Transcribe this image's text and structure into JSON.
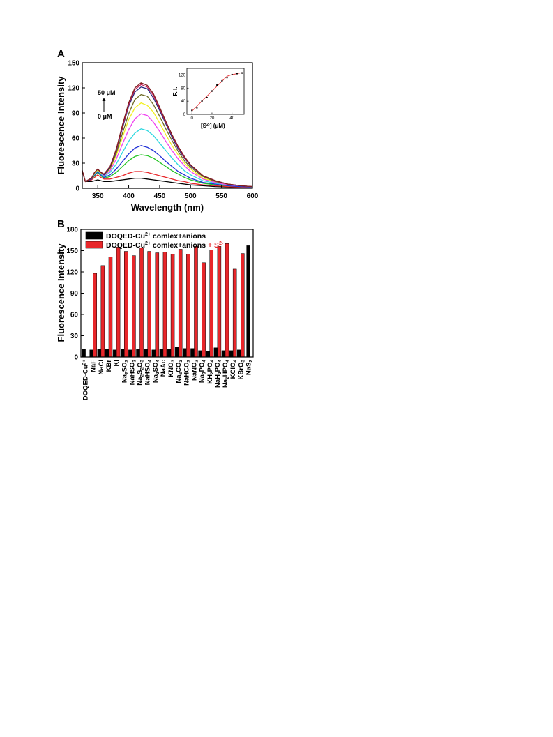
{
  "panels": [
    {
      "id": "A",
      "label": "A",
      "xlabel": "Wavelength (nm)",
      "ylabel": "Fluorescence Intensity",
      "xticks": [
        "350",
        "400",
        "450",
        "500",
        "550",
        "600"
      ],
      "yticks": [
        "0",
        "30",
        "60",
        "90",
        "120",
        "150"
      ],
      "annotation_top": "50 μM",
      "annotation_bottom": "0 μM",
      "inset": {
        "ylabel": "F. I.",
        "xlabel_parts": [
          "[S",
          "2-",
          "]  (μM)"
        ],
        "xticks": [
          "0",
          "20",
          "40"
        ],
        "yticks": [
          "0",
          "40",
          "80",
          "120"
        ]
      }
    },
    {
      "id": "B",
      "label": "B",
      "ylabel": "Fluorescence Intensity",
      "yticks": [
        "0",
        "30",
        "60",
        "90",
        "120",
        "150",
        "180"
      ],
      "legend": [
        {
          "parts": [
            "DOQED-Cu",
            "2+",
            " comlex+anions"
          ]
        },
        {
          "parts": [
            "DOQED-Cu",
            "2+",
            " comlex+anions ",
            "+ S",
            "2-"
          ]
        }
      ]
    }
  ],
  "chart_data": [
    {
      "type": "line",
      "panel": "A",
      "xlabel": "Wavelength (nm)",
      "ylabel": "Fluorescence Intensity",
      "xlim": [
        325,
        600
      ],
      "ylim": [
        0,
        150
      ],
      "x": [
        325,
        330,
        340,
        345,
        350,
        355,
        360,
        370,
        380,
        390,
        400,
        410,
        420,
        430,
        440,
        450,
        460,
        470,
        480,
        490,
        500,
        520,
        540,
        560,
        580,
        600
      ],
      "series": [
        {
          "color": "#000000",
          "values": [
            21,
            8,
            8,
            9,
            10,
            9,
            8,
            8,
            9,
            10,
            11,
            12,
            12,
            11,
            10,
            9,
            8,
            7,
            6,
            5,
            4,
            3,
            2,
            1.5,
            1,
            0.8
          ]
        },
        {
          "color": "#e8262a",
          "values": [
            21,
            8,
            10,
            13,
            16,
            13,
            11,
            11,
            13,
            15,
            18,
            20,
            20,
            19,
            17,
            15,
            13,
            11,
            9,
            8,
            6,
            4,
            3,
            2,
            1.5,
            1
          ]
        },
        {
          "color": "#22c422",
          "values": [
            21,
            8,
            11,
            15,
            19,
            15,
            12,
            14,
            19,
            26,
            33,
            38,
            40,
            39,
            36,
            31,
            26,
            21,
            17,
            13,
            10,
            6,
            4,
            3,
            2,
            1.5
          ]
        },
        {
          "color": "#1f2fd6",
          "values": [
            21,
            8,
            11,
            16,
            20,
            16,
            13,
            16,
            23,
            32,
            41,
            48,
            51,
            49,
            45,
            39,
            32,
            26,
            20,
            16,
            12,
            7,
            5,
            3,
            2,
            1.5
          ]
        },
        {
          "color": "#30d8e0",
          "values": [
            21,
            8,
            12,
            17,
            21,
            17,
            14,
            19,
            29,
            43,
            56,
            66,
            71,
            69,
            63,
            54,
            45,
            36,
            28,
            21,
            16,
            9,
            6,
            4,
            3,
            2
          ]
        },
        {
          "color": "#f040f0",
          "values": [
            21,
            8,
            12,
            18,
            22,
            18,
            15,
            21,
            35,
            53,
            70,
            83,
            89,
            87,
            79,
            68,
            56,
            45,
            35,
            27,
            20,
            11,
            7,
            4,
            3,
            2
          ]
        },
        {
          "color": "#f2f020",
          "values": [
            21,
            8,
            12,
            18,
            22,
            18,
            16,
            23,
            39,
            61,
            82,
            96,
            102,
            99,
            91,
            78,
            64,
            51,
            40,
            30,
            23,
            12,
            8,
            5,
            3,
            2
          ]
        },
        {
          "color": "#6e6a24",
          "values": [
            21,
            8,
            12,
            19,
            23,
            19,
            16,
            24,
            42,
            66,
            89,
            106,
            112,
            110,
            100,
            86,
            71,
            57,
            44,
            33,
            25,
            14,
            8,
            5,
            3,
            2
          ]
        },
        {
          "color": "#2a2a80",
          "values": [
            21,
            8,
            12,
            19,
            23,
            19,
            16,
            25,
            45,
            72,
            98,
            115,
            121,
            119,
            108,
            93,
            77,
            61,
            47,
            36,
            27,
            15,
            9,
            5,
            3,
            2
          ]
        },
        {
          "color": "#c02058",
          "values": [
            21,
            8,
            12,
            19,
            23,
            19,
            17,
            26,
            46,
            74,
            100,
            118,
            124,
            121,
            111,
            95,
            79,
            63,
            49,
            37,
            28,
            15,
            9,
            5,
            3,
            2
          ]
        },
        {
          "color": "#802020",
          "values": [
            21,
            8,
            12,
            19,
            23,
            19,
            17,
            26,
            47,
            76,
            102,
            120,
            126,
            123,
            113,
            97,
            80,
            64,
            50,
            38,
            28,
            15,
            9,
            5,
            3,
            2
          ]
        }
      ],
      "inset": {
        "type": "scatter",
        "xlabel": "[S2-] (μM)",
        "ylabel": "F. I.",
        "xlim": [
          -5,
          52
        ],
        "ylim": [
          0,
          140
        ],
        "x": [
          0,
          5,
          10,
          15,
          20,
          25,
          30,
          35,
          40,
          45,
          50
        ],
        "y": [
          12,
          20,
          40,
          51,
          71,
          89,
          102,
          112,
          121,
          124,
          126
        ],
        "fit_line": {
          "color": "#e8262a",
          "x": [
            0,
            35,
            40,
            50
          ],
          "y": [
            10,
            116,
            121,
            127
          ]
        }
      }
    },
    {
      "type": "bar",
      "panel": "B",
      "ylabel": "Fluorescence Intensity",
      "ylim": [
        0,
        180
      ],
      "categories": [
        {
          "base": "DOQED-Cu",
          "sup": "2+"
        },
        {
          "base": "NaF"
        },
        {
          "base": "NaCl"
        },
        {
          "base": "KBr"
        },
        {
          "base": "KI"
        },
        {
          "base": "Na",
          "sub": "2",
          "rest": "SO",
          "sub2": "3"
        },
        {
          "base": "NaHSO",
          "sub": "3"
        },
        {
          "base": "Na",
          "sub": "2",
          "rest": "S",
          "sub2": "2",
          "rest2": "O",
          "sub3": "3"
        },
        {
          "base": "NaHSO",
          "sub": "4"
        },
        {
          "base": "Na",
          "sub": "2",
          "rest": "SO",
          "sub2": "4"
        },
        {
          "base": "NaAc"
        },
        {
          "base": "KNO",
          "sub": "3"
        },
        {
          "base": "Na",
          "sub": "2",
          "rest": "CO",
          "sub2": "3"
        },
        {
          "base": "NaHCO",
          "sub": "3"
        },
        {
          "base": "NaNO",
          "sub": "2"
        },
        {
          "base": "Na",
          "sub": "3",
          "rest": "PO",
          "sub2": "4"
        },
        {
          "base": "KH",
          "sub": "2",
          "rest": "PO",
          "sub2": "4"
        },
        {
          "base": "NaH",
          "sub": "2",
          "rest": "PO",
          "sub2": "4"
        },
        {
          "base": "Na",
          "sub": "2",
          "rest": "HPO",
          "sub2": "4"
        },
        {
          "base": "KClO",
          "sub": "4"
        },
        {
          "base": "KBrO",
          "sub": "3"
        },
        {
          "base": "NaS",
          "sub": "2"
        }
      ],
      "series": [
        {
          "name": "DOQED-Cu2+ comlex+anions",
          "color": "#000000",
          "values": [
            11,
            10,
            11,
            11,
            10,
            11,
            10,
            11,
            11,
            10,
            11,
            11,
            14,
            12,
            12,
            9,
            8,
            13,
            9,
            9,
            10,
            null
          ]
        },
        {
          "name": "DOQED-Cu2+ comlex+anions + S2-",
          "color": "#e8262a",
          "values": [
            null,
            118,
            129,
            141,
            155,
            149,
            143,
            154,
            149,
            147,
            148,
            145,
            152,
            145,
            156,
            133,
            151,
            156,
            160,
            124,
            146,
            null
          ]
        }
      ],
      "single_bars": [
        {
          "category_index": 21,
          "value": 157,
          "color": "#000000"
        }
      ]
    }
  ]
}
